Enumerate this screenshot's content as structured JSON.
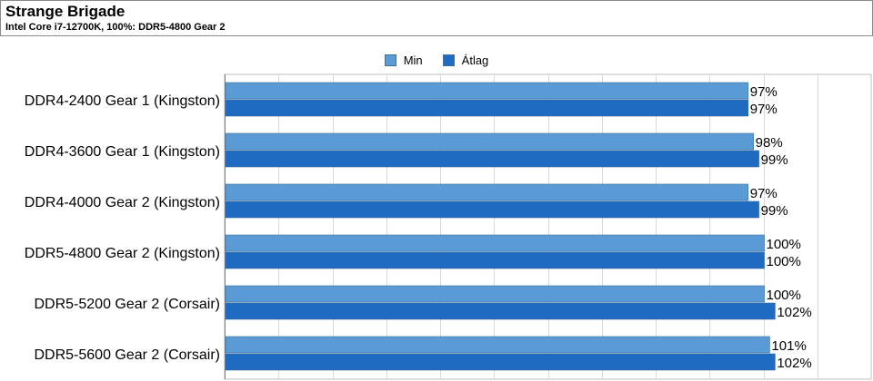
{
  "chart_data": {
    "type": "bar",
    "orientation": "horizontal",
    "title": "Strange Brigade",
    "subtitle": "Intel Core i7-12700K, 100%: DDR5-4800 Gear 2",
    "categories": [
      "DDR4-2400 Gear 1 (Kingston)",
      "DDR4-3600 Gear 1 (Kingston)",
      "DDR4-4000 Gear 2 (Kingston)",
      "DDR5-4800 Gear 2 (Kingston)",
      "DDR5-5200 Gear 2 (Corsair)",
      "DDR5-5600 Gear 2 (Corsair)"
    ],
    "series": [
      {
        "name": "Min",
        "color": "#5b9bd5",
        "values": [
          97,
          98,
          97,
          100,
          100,
          101
        ],
        "labels": [
          "97%",
          "98%",
          "97%",
          "100%",
          "100%",
          "101%"
        ]
      },
      {
        "name": "Átlag",
        "color": "#1f6bc1",
        "values": [
          97,
          99,
          99,
          100,
          102,
          102
        ],
        "labels": [
          "97%",
          "99%",
          "99%",
          "100%",
          "102%",
          "102%"
        ]
      }
    ],
    "value_unit": "%",
    "xlim": [
      0,
      120
    ],
    "grid": true,
    "legend_position": "top"
  }
}
